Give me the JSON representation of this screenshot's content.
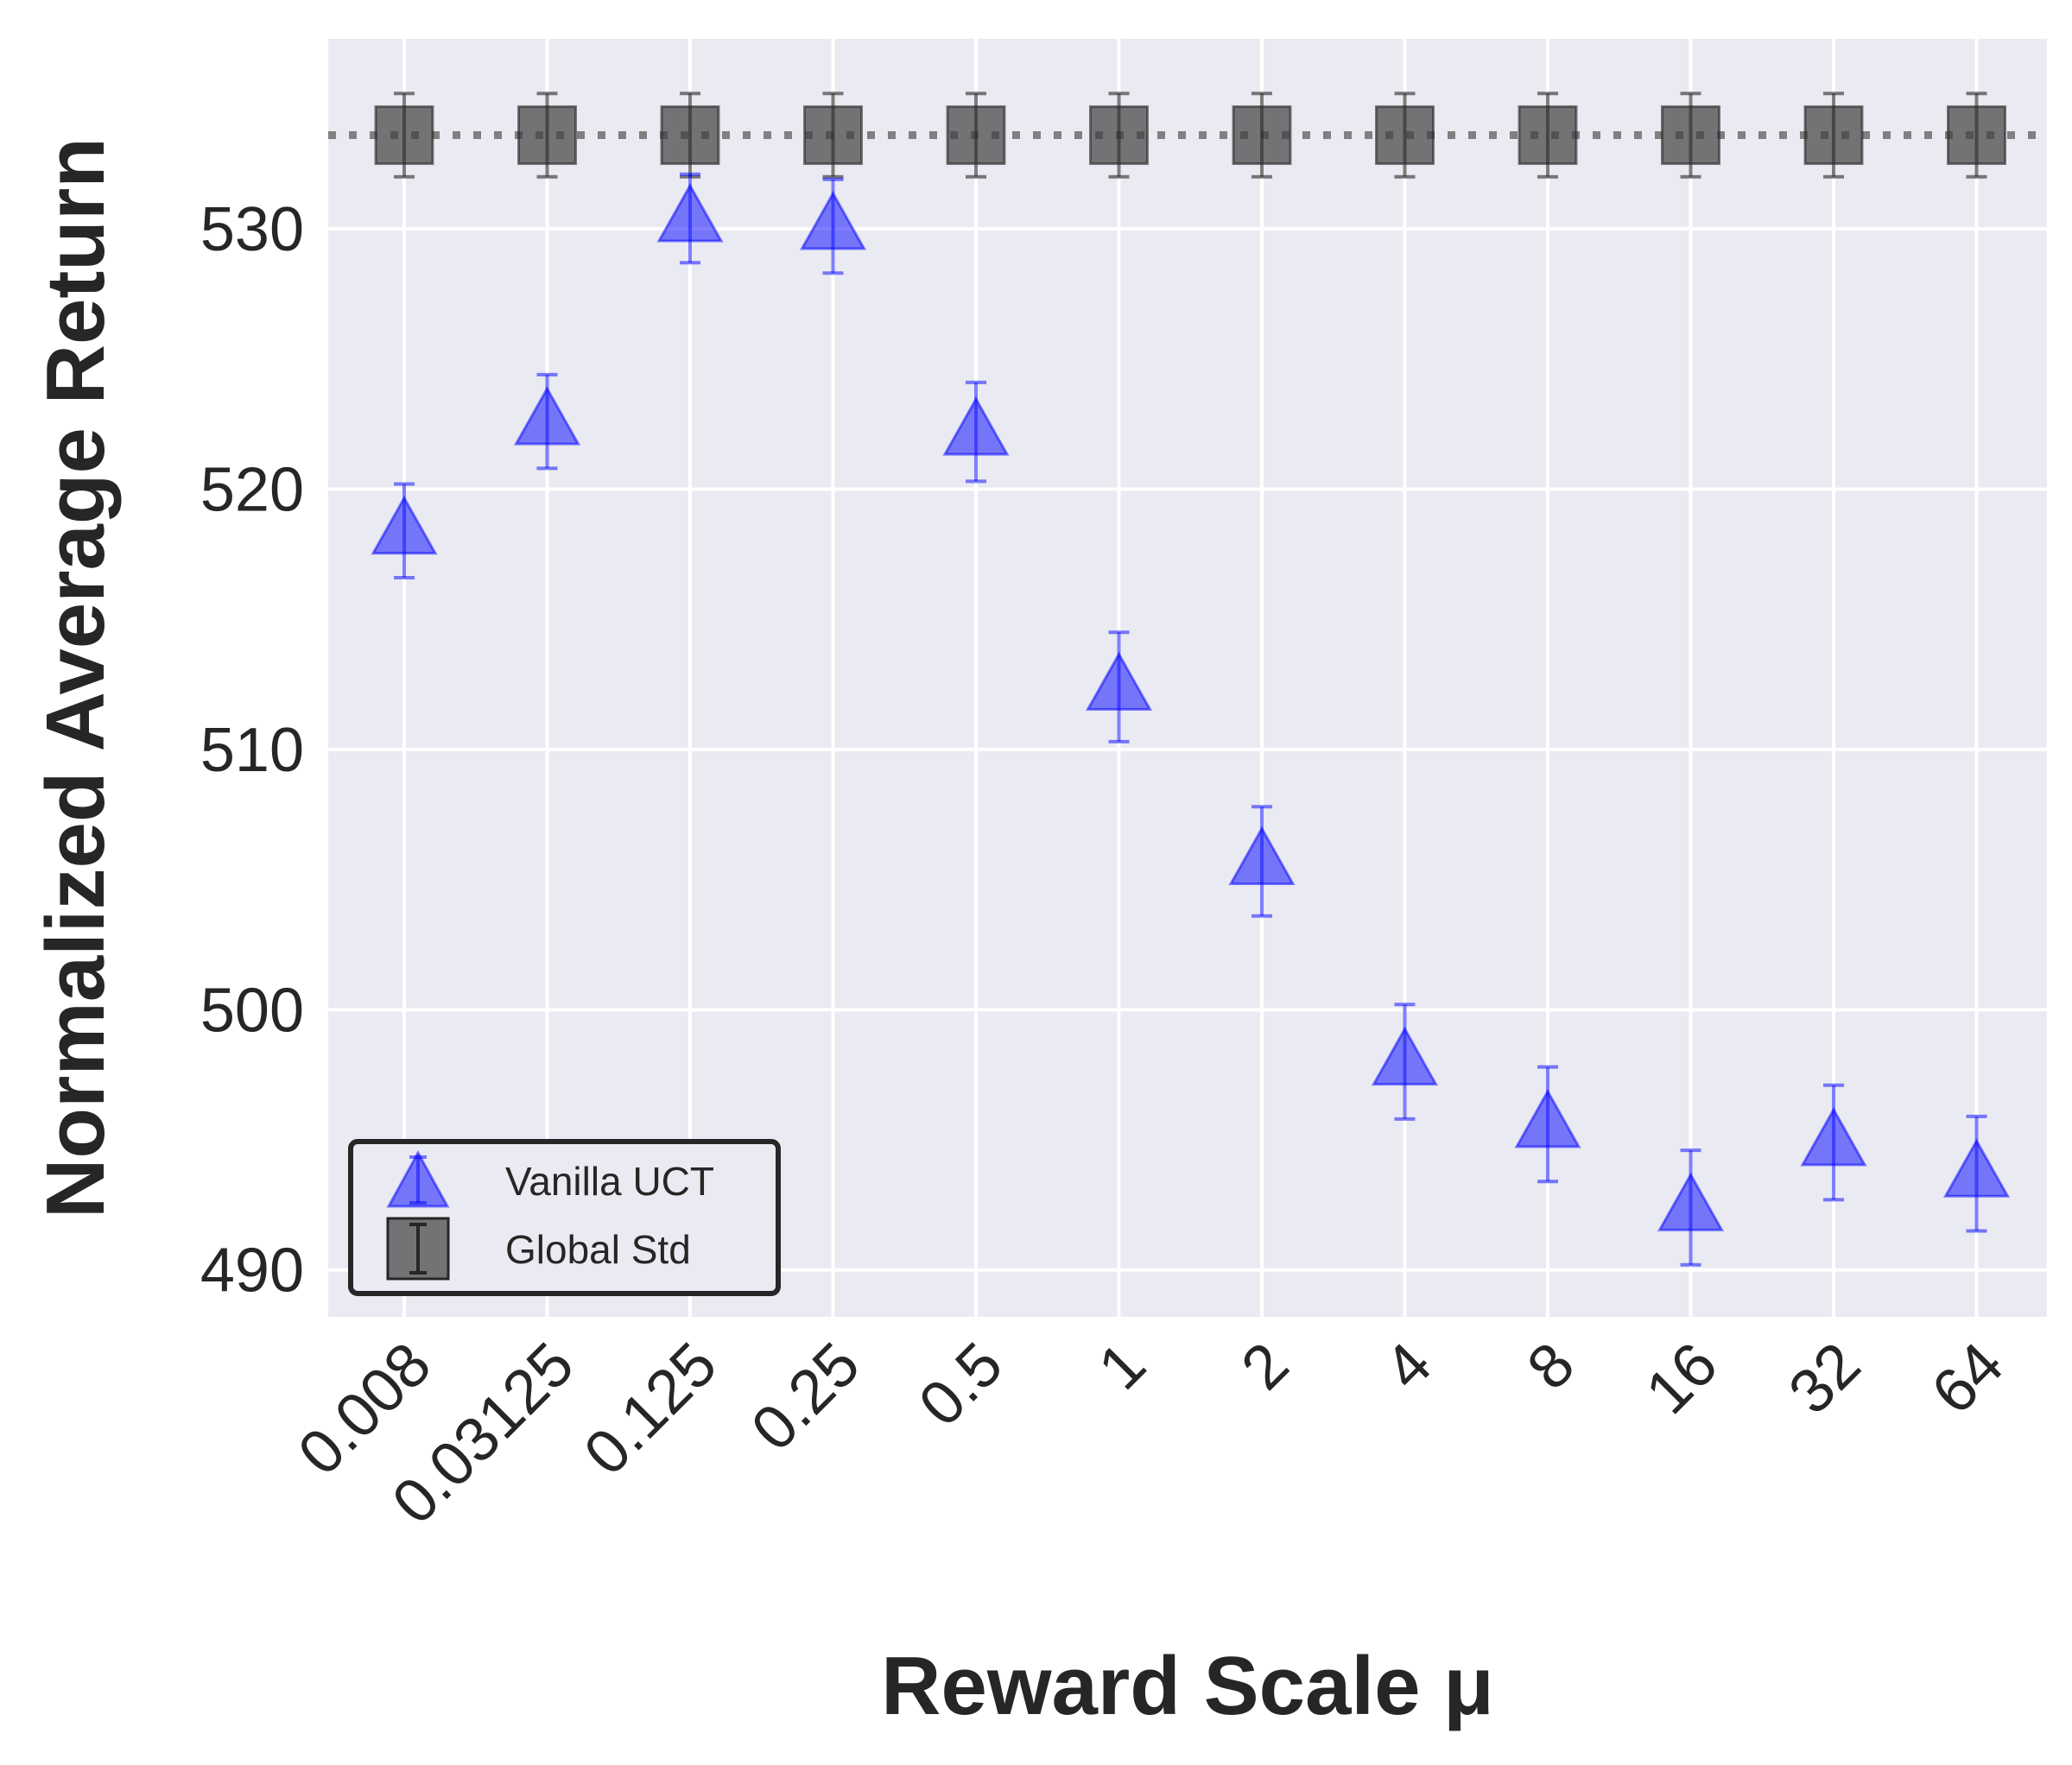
{
  "chart_data": {
    "type": "scatter",
    "title": "",
    "xlabel": "Reward Scale μ",
    "ylabel": "Normalized Average Return",
    "categories": [
      "0.008",
      "0.03125",
      "0.125",
      "0.25",
      "0.5",
      "1",
      "2",
      "4",
      "8",
      "16",
      "32",
      "64"
    ],
    "ylim": [
      488.2,
      537.3
    ],
    "yticks": [
      490,
      500,
      510,
      520,
      530
    ],
    "grid": true,
    "legend_position": "lower-left",
    "series": [
      {
        "name": "Vanilla UCT",
        "marker": "triangle",
        "color": "#0000ff",
        "values": [
          518.4,
          522.6,
          530.4,
          530.1,
          522.2,
          512.4,
          505.7,
          498.0,
          495.6,
          492.4,
          494.9,
          493.7
        ],
        "errors": [
          1.8,
          1.8,
          1.7,
          1.8,
          1.9,
          2.1,
          2.1,
          2.2,
          2.2,
          2.2,
          2.2,
          2.2
        ]
      },
      {
        "name": "Global Std",
        "marker": "square",
        "color": "#404040",
        "values": [
          533.6,
          533.6,
          533.6,
          533.6,
          533.6,
          533.6,
          533.6,
          533.6,
          533.6,
          533.6,
          533.6,
          533.6
        ],
        "errors": [
          1.6,
          1.6,
          1.6,
          1.6,
          1.6,
          1.6,
          1.6,
          1.6,
          1.6,
          1.6,
          1.6,
          1.6
        ]
      }
    ],
    "reference_line": {
      "y": 533.6,
      "style": "dotted",
      "color": "#808080"
    }
  }
}
